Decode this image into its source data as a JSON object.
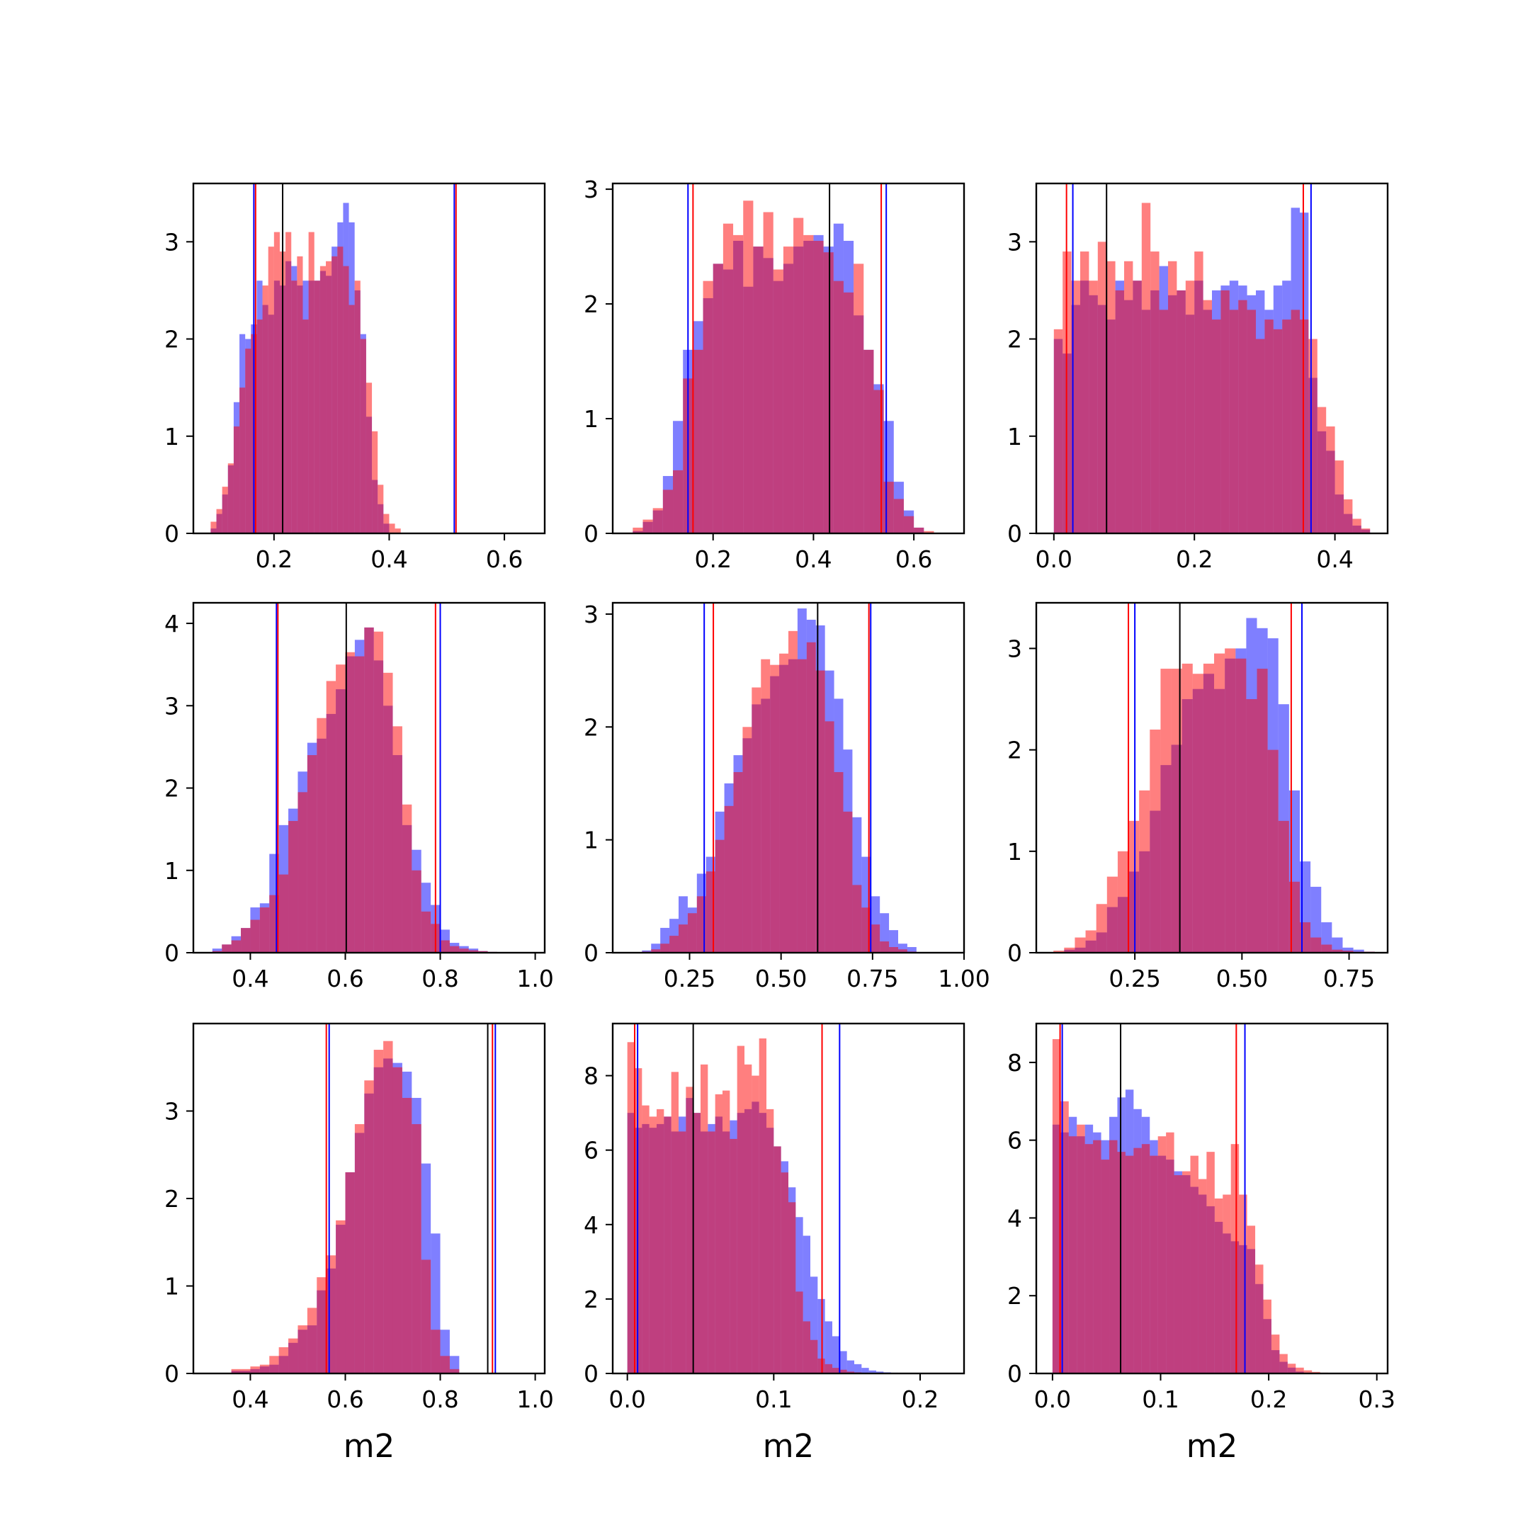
{
  "colors": {
    "blue": "#0000ff",
    "red": "#ff0000",
    "black": "#000000",
    "alpha": 0.5
  },
  "chart_data": [
    {
      "type": "bar",
      "xlabel": "",
      "xlim": [
        0.06,
        0.67
      ],
      "ylim": [
        0,
        3.6
      ],
      "xticks": [
        "0.2",
        "0.4",
        "0.6"
      ],
      "yticks": [
        "0",
        "1",
        "2",
        "3"
      ],
      "bin_start": 0.09,
      "bin_width": 0.01,
      "grid": false,
      "series": [
        {
          "color": "blue",
          "values": [
            0.05,
            0.2,
            0.4,
            0.7,
            1.35,
            2.05,
            2.0,
            2.15,
            2.6,
            2.35,
            2.25,
            2.6,
            2.55,
            2.8,
            2.75,
            2.55,
            2.6,
            2.6,
            2.6,
            2.7,
            2.65,
            2.95,
            3.2,
            3.4,
            3.2,
            2.5,
            2.05,
            1.2,
            0.55,
            0.3,
            0.1
          ]
        },
        {
          "color": "red",
          "values": [
            0.12,
            0.25,
            0.48,
            0.72,
            1.1,
            1.5,
            1.9,
            2.05,
            2.2,
            2.55,
            2.95,
            3.1,
            2.9,
            3.1,
            2.6,
            2.85,
            2.2,
            3.1,
            2.6,
            2.75,
            2.8,
            2.85,
            2.95,
            2.75,
            2.35,
            2.6,
            2.0,
            1.55,
            1.05,
            0.5,
            0.2,
            0.1,
            0.05
          ]
        }
      ],
      "vlines": [
        {
          "x": 0.165,
          "color": "blue"
        },
        {
          "x": 0.168,
          "color": "red"
        },
        {
          "x": 0.215,
          "color": "black"
        },
        {
          "x": 0.513,
          "color": "blue"
        },
        {
          "x": 0.516,
          "color": "red"
        }
      ]
    },
    {
      "type": "bar",
      "xlabel": "",
      "xlim": [
        0.0,
        0.7
      ],
      "ylim": [
        0,
        3.05
      ],
      "xticks": [
        "0.2",
        "0.4",
        "0.6"
      ],
      "yticks": [
        "0",
        "1",
        "2",
        "3"
      ],
      "bin_start": 0.04,
      "bin_width": 0.02,
      "grid": false,
      "series": [
        {
          "color": "blue",
          "values": [
            0.02,
            0.1,
            0.2,
            0.5,
            0.98,
            1.6,
            1.85,
            2.05,
            2.35,
            2.3,
            2.55,
            2.15,
            2.5,
            2.4,
            2.2,
            2.35,
            2.5,
            2.55,
            2.6,
            2.5,
            2.7,
            2.55,
            1.9,
            1.6,
            1.3,
            0.98,
            0.45,
            0.2,
            0.05
          ]
        },
        {
          "color": "red",
          "values": [
            0.05,
            0.12,
            0.22,
            0.38,
            0.55,
            1.35,
            1.6,
            2.2,
            2.35,
            2.7,
            2.6,
            2.9,
            2.5,
            2.8,
            2.3,
            2.5,
            2.75,
            2.6,
            2.55,
            2.45,
            2.2,
            2.1,
            2.35,
            1.6,
            1.25,
            0.45,
            0.3,
            0.15,
            0.05,
            0.02
          ]
        }
      ],
      "vlines": [
        {
          "x": 0.15,
          "color": "blue"
        },
        {
          "x": 0.16,
          "color": "red"
        },
        {
          "x": 0.432,
          "color": "black"
        },
        {
          "x": 0.535,
          "color": "red"
        },
        {
          "x": 0.545,
          "color": "blue"
        }
      ]
    },
    {
      "type": "bar",
      "xlabel": "",
      "xlim": [
        -0.025,
        0.475
      ],
      "ylim": [
        0,
        3.6
      ],
      "xticks": [
        "0.0",
        "0.2",
        "0.4"
      ],
      "yticks": [
        "0",
        "1",
        "2",
        "3"
      ],
      "bin_start": 0.0,
      "bin_width": 0.0125,
      "grid": false,
      "series": [
        {
          "color": "blue",
          "values": [
            2.0,
            1.85,
            2.35,
            2.6,
            2.45,
            2.35,
            2.2,
            2.6,
            2.4,
            2.6,
            2.3,
            2.5,
            2.75,
            2.45,
            2.5,
            2.25,
            2.6,
            2.3,
            2.5,
            2.55,
            2.6,
            2.55,
            2.45,
            2.5,
            2.3,
            2.55,
            2.6,
            3.35,
            3.3,
            1.6,
            1.05,
            0.85,
            0.4,
            0.2,
            0.08,
            0.04
          ]
        },
        {
          "color": "red",
          "values": [
            2.1,
            2.9,
            2.6,
            2.9,
            2.6,
            3.0,
            2.8,
            2.5,
            2.8,
            2.6,
            3.4,
            2.9,
            2.3,
            2.8,
            2.5,
            2.6,
            2.9,
            2.4,
            2.2,
            2.5,
            2.3,
            2.4,
            2.3,
            2.0,
            2.2,
            2.1,
            2.2,
            2.3,
            2.2,
            2.0,
            1.3,
            1.1,
            0.75,
            0.35,
            0.15,
            0.05
          ]
        }
      ],
      "vlines": [
        {
          "x": 0.018,
          "color": "red"
        },
        {
          "x": 0.027,
          "color": "blue"
        },
        {
          "x": 0.075,
          "color": "black"
        },
        {
          "x": 0.355,
          "color": "red"
        },
        {
          "x": 0.366,
          "color": "blue"
        }
      ]
    },
    {
      "type": "bar",
      "xlabel": "",
      "xlim": [
        0.28,
        1.02
      ],
      "ylim": [
        0,
        4.25
      ],
      "xticks": [
        "0.4",
        "0.6",
        "0.8",
        "1.0"
      ],
      "yticks": [
        "0",
        "1",
        "2",
        "3",
        "4"
      ],
      "bin_start": 0.32,
      "bin_width": 0.02,
      "grid": false,
      "series": [
        {
          "color": "blue",
          "values": [
            0.05,
            0.1,
            0.2,
            0.3,
            0.55,
            0.6,
            1.2,
            1.55,
            1.75,
            2.2,
            2.55,
            2.6,
            2.9,
            3.2,
            3.6,
            3.8,
            3.95,
            3.55,
            3.0,
            2.4,
            1.55,
            1.25,
            0.85,
            0.58,
            0.28,
            0.12,
            0.08,
            0.05,
            0.02,
            0.01
          ]
        },
        {
          "color": "red",
          "values": [
            0.02,
            0.1,
            0.15,
            0.3,
            0.4,
            0.55,
            0.7,
            0.95,
            1.6,
            1.95,
            2.4,
            2.85,
            3.3,
            3.5,
            3.65,
            3.6,
            3.95,
            3.9,
            3.4,
            2.75,
            1.8,
            1.0,
            0.5,
            0.35,
            0.15,
            0.08,
            0.05,
            0.03,
            0.02,
            0.01
          ]
        }
      ],
      "vlines": [
        {
          "x": 0.455,
          "color": "blue"
        },
        {
          "x": 0.458,
          "color": "red"
        },
        {
          "x": 0.602,
          "color": "black"
        },
        {
          "x": 0.79,
          "color": "red"
        },
        {
          "x": 0.8,
          "color": "blue"
        }
      ]
    },
    {
      "type": "bar",
      "xlabel": "",
      "xlim": [
        0.04,
        1.0
      ],
      "ylim": [
        0,
        3.1
      ],
      "xticks": [
        "0.25",
        "0.50",
        "0.75",
        "1.00"
      ],
      "yticks": [
        "0",
        "1",
        "2",
        "3"
      ],
      "bin_start": 0.12,
      "bin_width": 0.025,
      "grid": false,
      "series": [
        {
          "color": "blue",
          "values": [
            0.02,
            0.08,
            0.22,
            0.3,
            0.5,
            0.4,
            0.7,
            0.85,
            1.25,
            1.5,
            1.75,
            1.9,
            2.2,
            2.25,
            2.45,
            2.55,
            2.6,
            3.05,
            2.95,
            2.9,
            2.5,
            2.25,
            1.8,
            1.2,
            0.85,
            0.5,
            0.35,
            0.2,
            0.08,
            0.05
          ]
        },
        {
          "color": "red",
          "values": [
            0.01,
            0.03,
            0.08,
            0.15,
            0.25,
            0.35,
            0.5,
            0.72,
            1.0,
            1.3,
            1.6,
            2.0,
            2.35,
            2.6,
            2.55,
            2.65,
            2.85,
            2.6,
            2.75,
            2.5,
            2.05,
            1.6,
            1.25,
            0.6,
            0.4,
            0.25,
            0.1,
            0.05,
            0.03,
            0.01
          ]
        }
      ],
      "vlines": [
        {
          "x": 0.29,
          "color": "blue"
        },
        {
          "x": 0.315,
          "color": "red"
        },
        {
          "x": 0.6,
          "color": "black"
        },
        {
          "x": 0.74,
          "color": "red"
        },
        {
          "x": 0.745,
          "color": "blue"
        }
      ]
    },
    {
      "type": "bar",
      "xlabel": "",
      "xlim": [
        0.02,
        0.84
      ],
      "ylim": [
        0,
        3.45
      ],
      "xticks": [
        "0.25",
        "0.50",
        "0.75"
      ],
      "yticks": [
        "0",
        "1",
        "2",
        "3"
      ],
      "bin_start": 0.06,
      "bin_width": 0.025,
      "grid": false,
      "series": [
        {
          "color": "blue",
          "values": [
            0.0,
            0.03,
            0.05,
            0.12,
            0.2,
            0.45,
            0.55,
            0.8,
            1.0,
            1.4,
            1.85,
            2.05,
            2.5,
            2.6,
            2.75,
            2.6,
            2.9,
            3.0,
            3.3,
            3.2,
            3.1,
            2.45,
            1.6,
            0.9,
            0.65,
            0.3,
            0.15,
            0.05,
            0.03,
            0.01
          ]
        },
        {
          "color": "red",
          "values": [
            0.02,
            0.05,
            0.15,
            0.22,
            0.48,
            0.75,
            1.0,
            1.3,
            1.6,
            2.2,
            2.8,
            2.8,
            2.85,
            2.75,
            2.85,
            2.95,
            3.0,
            2.9,
            2.5,
            2.8,
            2.0,
            1.3,
            0.7,
            0.3,
            0.15,
            0.08,
            0.03,
            0.02,
            0.01,
            0.01
          ]
        }
      ],
      "vlines": [
        {
          "x": 0.235,
          "color": "red"
        },
        {
          "x": 0.25,
          "color": "blue"
        },
        {
          "x": 0.355,
          "color": "black"
        },
        {
          "x": 0.615,
          "color": "red"
        },
        {
          "x": 0.64,
          "color": "blue"
        }
      ]
    },
    {
      "type": "bar",
      "xlabel": "m2",
      "xlim": [
        0.28,
        1.02
      ],
      "ylim": [
        0,
        4.0
      ],
      "xticks": [
        "0.4",
        "0.6",
        "0.8",
        "1.0"
      ],
      "yticks": [
        "0",
        "1",
        "2",
        "3"
      ],
      "bin_start": 0.36,
      "bin_width": 0.02,
      "grid": false,
      "series": [
        {
          "color": "blue",
          "values": [
            0.03,
            0.03,
            0.05,
            0.08,
            0.1,
            0.2,
            0.35,
            0.5,
            0.55,
            0.95,
            1.2,
            1.7,
            2.3,
            2.75,
            3.2,
            3.5,
            3.6,
            3.55,
            3.45,
            3.15,
            2.4,
            1.6,
            0.5,
            0.2
          ]
        },
        {
          "color": "red",
          "values": [
            0.05,
            0.05,
            0.08,
            0.1,
            0.2,
            0.3,
            0.4,
            0.55,
            0.75,
            1.1,
            1.35,
            1.75,
            2.3,
            2.85,
            3.35,
            3.7,
            3.8,
            3.5,
            3.15,
            2.85,
            1.3,
            0.5,
            0.2,
            0.05
          ]
        }
      ],
      "vlines": [
        {
          "x": 0.56,
          "color": "red"
        },
        {
          "x": 0.566,
          "color": "blue"
        },
        {
          "x": 0.9,
          "color": "black"
        },
        {
          "x": 0.91,
          "color": "red"
        },
        {
          "x": 0.916,
          "color": "blue"
        }
      ]
    },
    {
      "type": "bar",
      "xlabel": "m2",
      "xlim": [
        -0.01,
        0.23
      ],
      "ylim": [
        0,
        9.4
      ],
      "xticks": [
        "0.0",
        "0.1",
        "0.2"
      ],
      "yticks": [
        "0",
        "2",
        "4",
        "6",
        "8"
      ],
      "bin_start": 0.0,
      "bin_width": 0.005,
      "grid": false,
      "series": [
        {
          "color": "blue",
          "values": [
            7.0,
            6.6,
            6.7,
            6.6,
            6.7,
            6.9,
            6.5,
            6.9,
            7.4,
            7.0,
            6.5,
            6.7,
            6.9,
            6.5,
            6.8,
            7.0,
            7.1,
            7.3,
            7.0,
            6.6,
            6.1,
            5.7,
            5.0,
            4.2,
            3.7,
            2.6,
            2.0,
            1.4,
            1.0,
            0.6,
            0.35,
            0.25,
            0.15,
            0.08,
            0.05,
            0.03,
            0.02,
            0.01
          ]
        },
        {
          "color": "red",
          "values": [
            8.9,
            8.2,
            7.2,
            6.9,
            7.1,
            6.9,
            8.1,
            6.5,
            7.7,
            7.0,
            8.3,
            6.5,
            7.5,
            7.6,
            6.3,
            8.8,
            8.3,
            8.0,
            9.0,
            7.1,
            6.1,
            5.4,
            4.6,
            2.2,
            1.4,
            0.9,
            0.4,
            0.25,
            0.15,
            0.1,
            0.05,
            0.03,
            0.02,
            0.01
          ]
        }
      ],
      "vlines": [
        {
          "x": 0.005,
          "color": "red"
        },
        {
          "x": 0.007,
          "color": "blue"
        },
        {
          "x": 0.045,
          "color": "black"
        },
        {
          "x": 0.133,
          "color": "red"
        },
        {
          "x": 0.145,
          "color": "blue"
        }
      ]
    },
    {
      "type": "bar",
      "xlabel": "m2",
      "xlim": [
        -0.015,
        0.31
      ],
      "ylim": [
        0,
        9.0
      ],
      "xticks": [
        "0.0",
        "0.1",
        "0.2",
        "0.3"
      ],
      "yticks": [
        "0",
        "2",
        "4",
        "6",
        "8"
      ],
      "bin_start": 0.0,
      "bin_width": 0.0075,
      "grid": false,
      "series": [
        {
          "color": "blue",
          "values": [
            6.4,
            6.2,
            6.6,
            6.1,
            6.4,
            6.2,
            6.0,
            6.6,
            7.1,
            7.3,
            6.8,
            6.6,
            6.0,
            5.6,
            5.5,
            5.2,
            5.1,
            4.8,
            4.6,
            4.3,
            3.9,
            3.6,
            3.4,
            3.3,
            3.2,
            2.3,
            1.4,
            0.6,
            0.3,
            0.15,
            0.05,
            0.02
          ]
        },
        {
          "color": "red",
          "values": [
            8.6,
            7.0,
            6.1,
            6.4,
            5.9,
            6.0,
            5.5,
            6.0,
            5.7,
            5.6,
            5.8,
            5.9,
            5.6,
            6.1,
            6.2,
            5.1,
            5.2,
            5.6,
            5.0,
            5.7,
            4.5,
            4.6,
            5.9,
            4.6,
            3.8,
            2.8,
            1.9,
            1.0,
            0.5,
            0.25,
            0.15,
            0.08,
            0.04,
            0.02
          ]
        }
      ],
      "vlines": [
        {
          "x": 0.007,
          "color": "red"
        },
        {
          "x": 0.009,
          "color": "blue"
        },
        {
          "x": 0.063,
          "color": "black"
        },
        {
          "x": 0.17,
          "color": "red"
        },
        {
          "x": 0.178,
          "color": "blue"
        }
      ]
    }
  ]
}
